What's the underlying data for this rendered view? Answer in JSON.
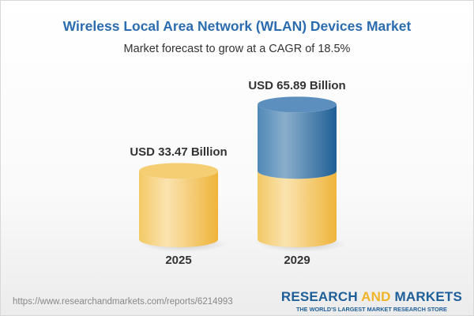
{
  "title": "Wireless Local Area Network (WLAN) Devices Market",
  "subtitle": "Market forecast to grow at a CAGR of 18.5%",
  "chart_data": {
    "type": "bar",
    "style": "3d-cylinder",
    "categories": [
      "2025",
      "2029"
    ],
    "values": [
      33.47,
      65.89
    ],
    "data_labels": [
      "USD 33.47 Billion",
      "USD 65.89 Billion"
    ],
    "unit": "USD Billion",
    "colors": {
      "base": "#f2c45a",
      "growth": "#3f7fb5"
    }
  },
  "footer": {
    "url": "https://www.researchandmarkets.com/reports/6214993",
    "logo_part1": "RESEARCH",
    "logo_part2": "AND",
    "logo_part3": "MARKETS",
    "logo_tagline": "THE WORLD'S LARGEST MARKET RESEARCH STORE"
  }
}
